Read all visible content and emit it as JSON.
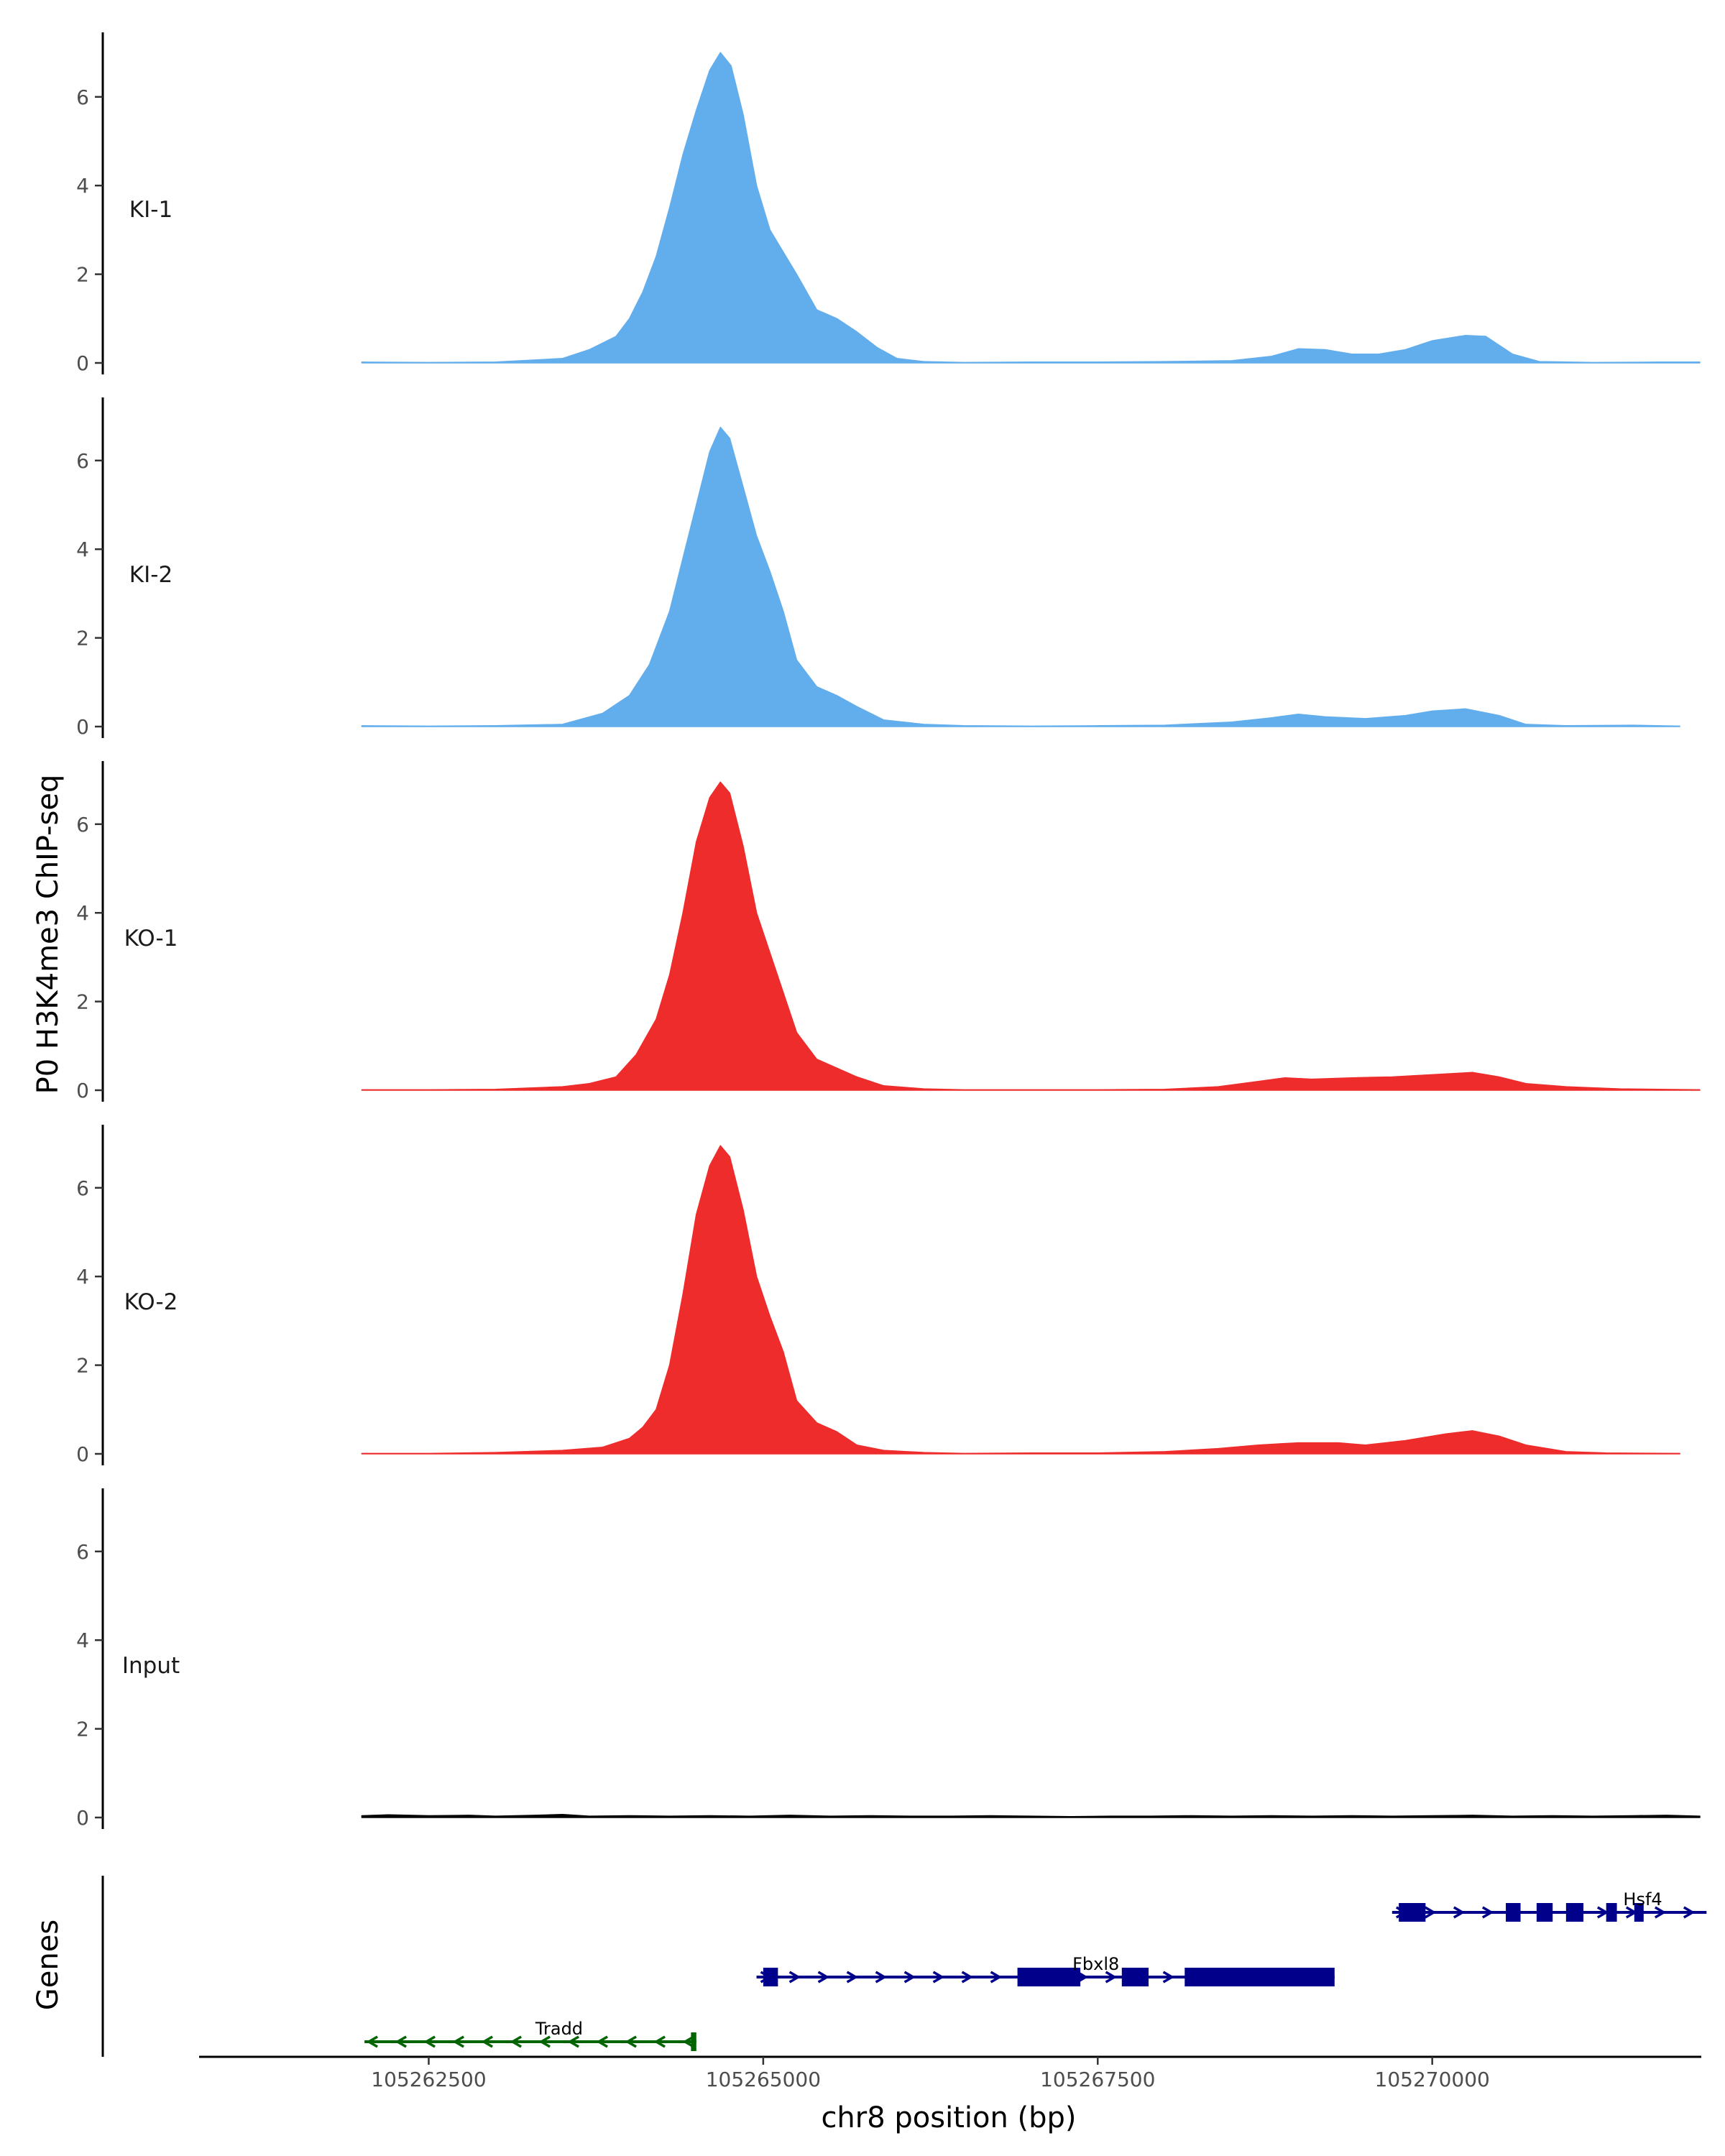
{
  "chart_data": {
    "type": "area",
    "ylabel": "P0 H3K4me3 ChIP-seq",
    "xlabel": "chr8 position (bp)",
    "genes_label": "Genes",
    "xlim": [
      105260800,
      105272000
    ],
    "ylim": [
      0,
      7.4
    ],
    "yticks": [
      0,
      2,
      4,
      6
    ],
    "xticks": [
      {
        "value": 105262500,
        "label": "105262500"
      },
      {
        "value": 105265000,
        "label": "105265000"
      },
      {
        "value": 105267500,
        "label": "105267500"
      },
      {
        "value": 105270000,
        "label": "105270000"
      }
    ],
    "colors": {
      "KI": "#62aeed",
      "KO": "#ee2c2c",
      "Input": "#000000",
      "gene_plus": "#00008b",
      "gene_minus": "#006400"
    },
    "tracks": [
      {
        "name": "KI-1",
        "color": "#62aeed",
        "points": [
          [
            105262000,
            0.02
          ],
          [
            105262500,
            0.01
          ],
          [
            105263000,
            0.02
          ],
          [
            105263500,
            0.1
          ],
          [
            105263700,
            0.3
          ],
          [
            105263900,
            0.6
          ],
          [
            105264000,
            1.0
          ],
          [
            105264100,
            1.6
          ],
          [
            105264200,
            2.4
          ],
          [
            105264300,
            3.5
          ],
          [
            105264400,
            4.7
          ],
          [
            105264500,
            5.7
          ],
          [
            105264600,
            6.6
          ],
          [
            105264680,
            7.0
          ],
          [
            105264760,
            6.7
          ],
          [
            105264850,
            5.6
          ],
          [
            105264950,
            4.0
          ],
          [
            105265050,
            3.0
          ],
          [
            105265150,
            2.5
          ],
          [
            105265250,
            2.0
          ],
          [
            105265400,
            1.2
          ],
          [
            105265550,
            1.0
          ],
          [
            105265700,
            0.7
          ],
          [
            105265850,
            0.35
          ],
          [
            105266000,
            0.1
          ],
          [
            105266200,
            0.03
          ],
          [
            105266500,
            0.01
          ],
          [
            105267000,
            0.02
          ],
          [
            105267500,
            0.02
          ],
          [
            105268000,
            0.03
          ],
          [
            105268500,
            0.05
          ],
          [
            105268800,
            0.15
          ],
          [
            105269000,
            0.32
          ],
          [
            105269200,
            0.3
          ],
          [
            105269400,
            0.2
          ],
          [
            105269600,
            0.2
          ],
          [
            105269800,
            0.3
          ],
          [
            105270000,
            0.5
          ],
          [
            105270250,
            0.62
          ],
          [
            105270400,
            0.6
          ],
          [
            105270600,
            0.2
          ],
          [
            105270800,
            0.03
          ],
          [
            105271200,
            0.01
          ],
          [
            105271700,
            0.02
          ],
          [
            105272000,
            0.02
          ]
        ]
      },
      {
        "name": "KI-2",
        "color": "#62aeed",
        "points": [
          [
            105262000,
            0.02
          ],
          [
            105262500,
            0.01
          ],
          [
            105263000,
            0.02
          ],
          [
            105263500,
            0.05
          ],
          [
            105263800,
            0.3
          ],
          [
            105264000,
            0.7
          ],
          [
            105264150,
            1.4
          ],
          [
            105264300,
            2.6
          ],
          [
            105264400,
            3.8
          ],
          [
            105264500,
            5.0
          ],
          [
            105264600,
            6.2
          ],
          [
            105264680,
            6.75
          ],
          [
            105264750,
            6.5
          ],
          [
            105264850,
            5.4
          ],
          [
            105264950,
            4.3
          ],
          [
            105265050,
            3.5
          ],
          [
            105265150,
            2.6
          ],
          [
            105265250,
            1.5
          ],
          [
            105265400,
            0.9
          ],
          [
            105265550,
            0.7
          ],
          [
            105265700,
            0.45
          ],
          [
            105265900,
            0.15
          ],
          [
            105266200,
            0.05
          ],
          [
            105266500,
            0.02
          ],
          [
            105267000,
            0.01
          ],
          [
            105267500,
            0.02
          ],
          [
            105268000,
            0.03
          ],
          [
            105268500,
            0.1
          ],
          [
            105268800,
            0.2
          ],
          [
            105269000,
            0.28
          ],
          [
            105269200,
            0.22
          ],
          [
            105269500,
            0.18
          ],
          [
            105269800,
            0.25
          ],
          [
            105270000,
            0.35
          ],
          [
            105270250,
            0.4
          ],
          [
            105270500,
            0.25
          ],
          [
            105270700,
            0.05
          ],
          [
            105271000,
            0.02
          ],
          [
            105271500,
            0.03
          ],
          [
            105271850,
            0.01
          ]
        ]
      },
      {
        "name": "KO-1",
        "color": "#ee2c2c",
        "points": [
          [
            105262000,
            0.01
          ],
          [
            105262500,
            0.01
          ],
          [
            105263000,
            0.02
          ],
          [
            105263500,
            0.08
          ],
          [
            105263700,
            0.15
          ],
          [
            105263900,
            0.3
          ],
          [
            105264050,
            0.8
          ],
          [
            105264200,
            1.6
          ],
          [
            105264300,
            2.6
          ],
          [
            105264400,
            4.0
          ],
          [
            105264500,
            5.6
          ],
          [
            105264600,
            6.6
          ],
          [
            105264680,
            6.95
          ],
          [
            105264750,
            6.7
          ],
          [
            105264850,
            5.5
          ],
          [
            105264950,
            4.0
          ],
          [
            105265050,
            3.1
          ],
          [
            105265150,
            2.2
          ],
          [
            105265250,
            1.3
          ],
          [
            105265400,
            0.7
          ],
          [
            105265550,
            0.5
          ],
          [
            105265700,
            0.3
          ],
          [
            105265900,
            0.1
          ],
          [
            105266200,
            0.03
          ],
          [
            105266500,
            0.01
          ],
          [
            105267000,
            0.01
          ],
          [
            105267500,
            0.01
          ],
          [
            105268000,
            0.02
          ],
          [
            105268400,
            0.08
          ],
          [
            105268700,
            0.2
          ],
          [
            105268900,
            0.28
          ],
          [
            105269100,
            0.25
          ],
          [
            105269400,
            0.28
          ],
          [
            105269700,
            0.3
          ],
          [
            105270000,
            0.35
          ],
          [
            105270300,
            0.4
          ],
          [
            105270500,
            0.3
          ],
          [
            105270700,
            0.15
          ],
          [
            105271000,
            0.08
          ],
          [
            105271400,
            0.03
          ],
          [
            105272000,
            0.01
          ]
        ]
      },
      {
        "name": "KO-2",
        "color": "#ee2c2c",
        "points": [
          [
            105262000,
            0.01
          ],
          [
            105262500,
            0.01
          ],
          [
            105263000,
            0.03
          ],
          [
            105263500,
            0.08
          ],
          [
            105263800,
            0.15
          ],
          [
            105264000,
            0.35
          ],
          [
            105264100,
            0.6
          ],
          [
            105264200,
            1.0
          ],
          [
            105264300,
            2.0
          ],
          [
            105264400,
            3.6
          ],
          [
            105264500,
            5.4
          ],
          [
            105264600,
            6.5
          ],
          [
            105264680,
            6.95
          ],
          [
            105264750,
            6.7
          ],
          [
            105264850,
            5.5
          ],
          [
            105264950,
            4.0
          ],
          [
            105265050,
            3.1
          ],
          [
            105265150,
            2.3
          ],
          [
            105265250,
            1.2
          ],
          [
            105265400,
            0.7
          ],
          [
            105265550,
            0.5
          ],
          [
            105265700,
            0.2
          ],
          [
            105265900,
            0.08
          ],
          [
            105266200,
            0.03
          ],
          [
            105266500,
            0.01
          ],
          [
            105267000,
            0.02
          ],
          [
            105267500,
            0.02
          ],
          [
            105268000,
            0.05
          ],
          [
            105268400,
            0.12
          ],
          [
            105268700,
            0.2
          ],
          [
            105269000,
            0.25
          ],
          [
            105269300,
            0.25
          ],
          [
            105269500,
            0.2
          ],
          [
            105269800,
            0.3
          ],
          [
            105270100,
            0.45
          ],
          [
            105270300,
            0.52
          ],
          [
            105270500,
            0.4
          ],
          [
            105270700,
            0.2
          ],
          [
            105271000,
            0.05
          ],
          [
            105271300,
            0.02
          ],
          [
            105271850,
            0.01
          ]
        ]
      },
      {
        "name": "Input",
        "color": "#000000",
        "points": [
          [
            105262000,
            0.04
          ],
          [
            105262200,
            0.06
          ],
          [
            105262500,
            0.04
          ],
          [
            105262800,
            0.05
          ],
          [
            105263000,
            0.03
          ],
          [
            105263300,
            0.05
          ],
          [
            105263500,
            0.07
          ],
          [
            105263700,
            0.03
          ],
          [
            105264000,
            0.04
          ],
          [
            105264300,
            0.03
          ],
          [
            105264600,
            0.04
          ],
          [
            105264900,
            0.03
          ],
          [
            105265200,
            0.05
          ],
          [
            105265500,
            0.03
          ],
          [
            105265800,
            0.04
          ],
          [
            105266100,
            0.03
          ],
          [
            105266400,
            0.03
          ],
          [
            105266700,
            0.04
          ],
          [
            105267000,
            0.03
          ],
          [
            105267300,
            0.02
          ],
          [
            105267600,
            0.03
          ],
          [
            105267900,
            0.03
          ],
          [
            105268200,
            0.04
          ],
          [
            105268500,
            0.03
          ],
          [
            105268800,
            0.04
          ],
          [
            105269100,
            0.03
          ],
          [
            105269400,
            0.04
          ],
          [
            105269700,
            0.03
          ],
          [
            105270000,
            0.04
          ],
          [
            105270300,
            0.05
          ],
          [
            105270600,
            0.03
          ],
          [
            105270900,
            0.04
          ],
          [
            105271200,
            0.03
          ],
          [
            105271500,
            0.04
          ],
          [
            105271750,
            0.05
          ],
          [
            105272000,
            0.03
          ]
        ]
      }
    ],
    "genes": [
      {
        "name": "Hsf4",
        "strand": "+",
        "color": "#00008b",
        "row": 0,
        "start": 105269700,
        "end": 105272050,
        "exons": [
          [
            105269750,
            105269950
          ],
          [
            105270550,
            105270660
          ],
          [
            105270780,
            105270900
          ],
          [
            105271000,
            105271130
          ],
          [
            105271300,
            105271380
          ],
          [
            105271510,
            105271580
          ]
        ]
      },
      {
        "name": "Fbxl8",
        "strand": "+",
        "color": "#00008b",
        "row": 1,
        "start": 105264950,
        "end": 105269270,
        "exons": [
          [
            105265000,
            105265110
          ],
          [
            105266900,
            105267370
          ],
          [
            105267680,
            105267880
          ],
          [
            105268150,
            105269270
          ]
        ]
      },
      {
        "name": "Tradd",
        "strand": "-",
        "color": "#006400",
        "row": 2,
        "start": 105262020,
        "end": 105264500,
        "exons": [
          [
            105264460,
            105264500
          ]
        ]
      }
    ]
  }
}
